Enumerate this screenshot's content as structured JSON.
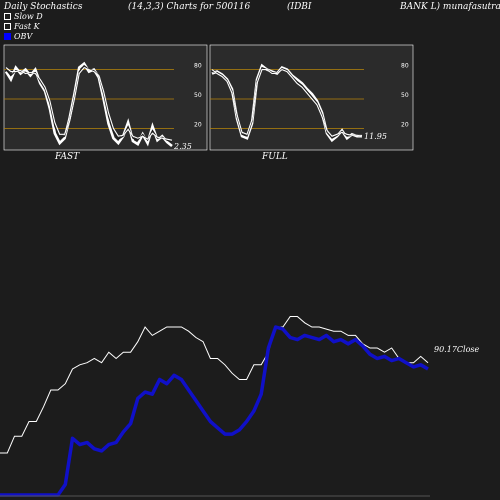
{
  "header": {
    "left": "Daily Stochastics",
    "params": "(14,3,3) Charts for 500116",
    "name1": "(IDBI",
    "name2": "BANK L) munafasutra"
  },
  "legend": [
    {
      "label": "Slow  D",
      "color": "#ffffff"
    },
    {
      "label": "Fast K",
      "color": "#ffffff"
    },
    {
      "label": "OBV",
      "color": "#0000ff"
    }
  ],
  "chart_data": [
    {
      "type": "line",
      "title": "FAST",
      "ylim": [
        0,
        100
      ],
      "yticks": [
        20,
        50,
        80
      ],
      "hlines": [
        20,
        50,
        80
      ],
      "end_label": "2.35",
      "series": [
        {
          "values": [
            78,
            70,
            82,
            76,
            80,
            74,
            80,
            66,
            58,
            40,
            15,
            5,
            10,
            30,
            55,
            82,
            86,
            78,
            80,
            72,
            50,
            25,
            10,
            5,
            12,
            26,
            7,
            4,
            14,
            5,
            22,
            8,
            12,
            6,
            2
          ]
        },
        {
          "values": [
            80,
            74,
            79,
            78,
            77,
            76,
            77,
            68,
            60,
            45,
            22,
            10,
            12,
            28,
            52,
            78,
            84,
            80,
            79,
            74,
            55,
            32,
            16,
            9,
            12,
            22,
            10,
            8,
            14,
            8,
            18,
            10,
            11,
            8,
            6
          ]
        },
        {
          "values": [
            82,
            78,
            78,
            79,
            76,
            77,
            76,
            70,
            62,
            48,
            26,
            14,
            14,
            27,
            50,
            76,
            82,
            80,
            78,
            74,
            58,
            36,
            20,
            12,
            13,
            19,
            12,
            10,
            12,
            9,
            15,
            11,
            10,
            9,
            8
          ]
        }
      ]
    },
    {
      "type": "line",
      "title": "FULL",
      "ylim": [
        0,
        100
      ],
      "yticks": [
        20,
        50,
        80
      ],
      "hlines": [
        20,
        50,
        80
      ],
      "end_label": "11.95",
      "series": [
        {
          "values": [
            76,
            78,
            75,
            70,
            60,
            30,
            12,
            10,
            25,
            70,
            84,
            80,
            78,
            76,
            82,
            80,
            74,
            70,
            66,
            60,
            55,
            48,
            36,
            15,
            8,
            12,
            18,
            10,
            14,
            12,
            12
          ]
        },
        {
          "values": [
            78,
            77,
            74,
            69,
            58,
            32,
            14,
            12,
            27,
            68,
            82,
            80,
            77,
            76,
            81,
            79,
            73,
            68,
            64,
            58,
            52,
            46,
            34,
            16,
            10,
            13,
            17,
            12,
            13,
            13,
            12
          ]
        },
        {
          "values": [
            80,
            76,
            73,
            68,
            56,
            34,
            16,
            14,
            29,
            66,
            80,
            80,
            76,
            76,
            80,
            78,
            72,
            66,
            62,
            56,
            50,
            44,
            32,
            18,
            12,
            14,
            16,
            14,
            13,
            13,
            12
          ]
        }
      ]
    },
    {
      "type": "line",
      "end_label": "90.17Close",
      "series": [
        {
          "values": [
            20,
            20,
            28,
            28,
            35,
            35,
            42,
            50,
            50,
            53,
            60,
            62,
            63,
            65,
            63,
            68,
            65,
            68,
            68,
            73,
            80,
            76,
            78,
            80,
            80,
            80,
            78,
            75,
            73,
            65,
            65,
            62,
            58,
            55,
            55,
            62,
            62,
            68,
            80,
            80,
            85,
            85,
            82,
            80,
            80,
            79,
            78,
            78,
            76,
            76,
            72,
            70,
            70,
            68,
            70,
            65,
            63,
            63,
            66,
            63
          ]
        },
        {
          "values": [
            0,
            0,
            0,
            0,
            0,
            0,
            0,
            0,
            0,
            5,
            27,
            24,
            25,
            22,
            21,
            24,
            25,
            30,
            34,
            46,
            49,
            48,
            55,
            53,
            57,
            55,
            50,
            45,
            40,
            35,
            32,
            29,
            29,
            31,
            35,
            40,
            48,
            70,
            80,
            79,
            75,
            74,
            76,
            75,
            74,
            76,
            73,
            74,
            72,
            74,
            71,
            67,
            65,
            66,
            64,
            65,
            63,
            61,
            62,
            60
          ]
        }
      ]
    }
  ]
}
